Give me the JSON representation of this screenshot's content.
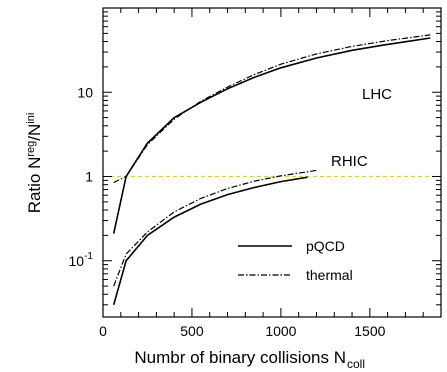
{
  "chart_data": {
    "type": "line",
    "xlabel": "Numbr of binary collisions N",
    "xlabel_sub": "coll",
    "ylabel_main": "Ratio N",
    "ylabel_sup1": "reg",
    "ylabel_mid": "/N",
    "ylabel_sup2": "ini",
    "x_scale": "linear",
    "y_scale": "log",
    "xlim": [
      0,
      1900
    ],
    "ylim": [
      0.0215,
      100
    ],
    "x_ticks": [
      0,
      500,
      1000,
      1500
    ],
    "x_tick_labels": [
      "0",
      "500",
      "1000",
      "1500"
    ],
    "y_tick_labels": [
      {
        "value": 10,
        "text": "10"
      },
      {
        "value": 1,
        "text": "1"
      },
      {
        "value": 0.1,
        "base": "10",
        "exp": "-1"
      }
    ],
    "reference_line": {
      "y": 1,
      "color": "#e8d600",
      "style": "dashed"
    },
    "annotations": [
      {
        "text": "LHC",
        "x": 1610,
        "y": 10.5
      },
      {
        "text": "RHIC",
        "x": 1280,
        "y": 1.22
      }
    ],
    "legend": {
      "placement": "bottom-right",
      "entries": [
        {
          "label": "pQCD",
          "style": "solid"
        },
        {
          "label": "thermal",
          "style": "dashdot"
        }
      ]
    },
    "series": [
      {
        "group": "LHC",
        "style": "solid",
        "x": [
          60,
          130,
          250,
          400,
          550,
          700,
          850,
          1000,
          1200,
          1400,
          1600,
          1840
        ],
        "y": [
          0.21,
          1.0,
          2.5,
          5.0,
          7.6,
          11.0,
          15.0,
          19.5,
          25.5,
          31.5,
          37.0,
          44.0
        ]
      },
      {
        "group": "LHC",
        "style": "dashdot",
        "x": [
          60,
          130,
          250,
          400,
          550,
          700,
          850,
          1000,
          1200,
          1400,
          1600,
          1840
        ],
        "y": [
          0.85,
          1.0,
          2.4,
          4.8,
          7.8,
          11.5,
          16.2,
          21.5,
          28.5,
          35.0,
          41.0,
          48.0
        ]
      },
      {
        "group": "RHIC",
        "style": "solid",
        "x": [
          60,
          130,
          250,
          400,
          550,
          700,
          850,
          1000,
          1150
        ],
        "y": [
          0.03,
          0.1,
          0.2,
          0.33,
          0.47,
          0.61,
          0.74,
          0.87,
          0.98
        ]
      },
      {
        "group": "RHIC",
        "style": "dashdot",
        "x": [
          60,
          130,
          250,
          400,
          550,
          700,
          850,
          1000,
          1200
        ],
        "y": [
          0.05,
          0.12,
          0.22,
          0.38,
          0.55,
          0.72,
          0.88,
          1.02,
          1.18
        ]
      }
    ]
  }
}
